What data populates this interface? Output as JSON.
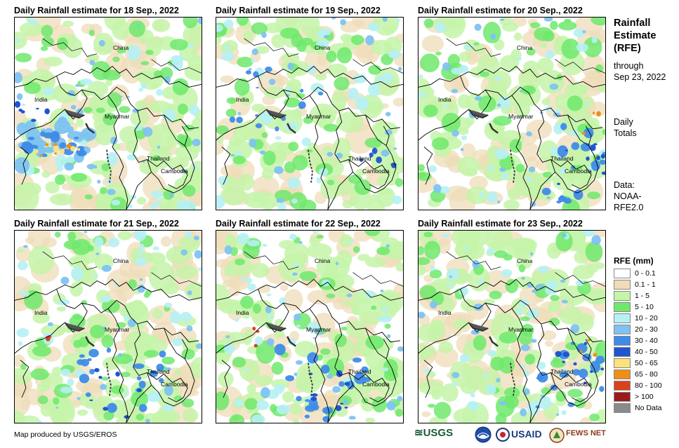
{
  "panels": [
    {
      "title": "Daily Rainfall estimate for 18 Sep., 2022",
      "intensity": "heavy-west"
    },
    {
      "title": "Daily Rainfall estimate for 19 Sep., 2022",
      "intensity": "moderate"
    },
    {
      "title": "Daily Rainfall estimate for 20 Sep., 2022",
      "intensity": "moderate-east"
    },
    {
      "title": "Daily Rainfall estimate for 21 Sep., 2022",
      "intensity": "moderate-south"
    },
    {
      "title": "Daily Rainfall estimate for 22 Sep., 2022",
      "intensity": "moderate-south"
    },
    {
      "title": "Daily Rainfall estimate for 23 Sep., 2022",
      "intensity": "moderate-east"
    }
  ],
  "places": {
    "china": "China",
    "india": "India",
    "myanmar": "Myanmar",
    "thailand": "Thailand",
    "cambodia": "Cambodia"
  },
  "sidebar": {
    "title_lines": [
      "Rainfall",
      "Estimate",
      "(RFE)"
    ],
    "through": "through",
    "date": "Sep 23, 2022",
    "daily": "Daily",
    "totals": "Totals",
    "data_label": "Data:",
    "data_src1": "NOAA-",
    "data_src2": "RFE2.0"
  },
  "legend": {
    "title": "RFE (mm)",
    "items": [
      {
        "label": "0 - 0.1",
        "color": "#ffffff"
      },
      {
        "label": "0.1 - 1",
        "color": "#efdcb8"
      },
      {
        "label": "1 - 5",
        "color": "#c4f5a9"
      },
      {
        "label": "5 - 10",
        "color": "#6fe96c"
      },
      {
        "label": "10 - 20",
        "color": "#b6f1f4"
      },
      {
        "label": "20 - 30",
        "color": "#7ec3f1"
      },
      {
        "label": "30 - 40",
        "color": "#3f8be8"
      },
      {
        "label": "40 - 50",
        "color": "#1f55cf"
      },
      {
        "label": "50 - 65",
        "color": "#fbe27a"
      },
      {
        "label": "65 - 80",
        "color": "#f08e17"
      },
      {
        "label": "80 - 100",
        "color": "#d9401c"
      },
      {
        "label": "> 100",
        "color": "#9b1b1b"
      },
      {
        "label": "No Data",
        "color": "#8a8a8a"
      }
    ]
  },
  "credit": "Map produced by USGS/EROS",
  "logos": {
    "usgs": "≊USGS",
    "usaid": "USAID",
    "fews": "FEWS NET"
  }
}
